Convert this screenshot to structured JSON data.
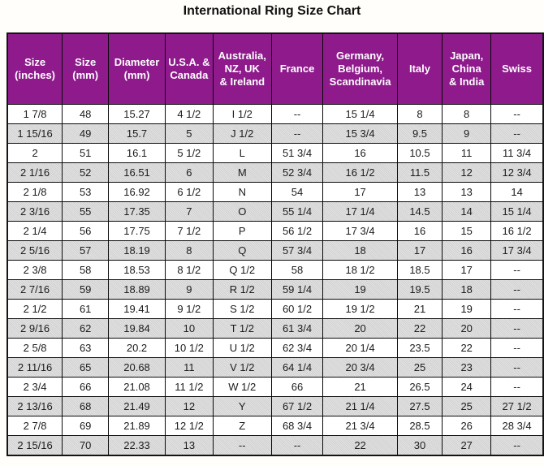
{
  "title": "International Ring Size Chart",
  "colors": {
    "header_bg": "#8E1A8C",
    "header_text": "#FFFFFF",
    "row_alt_bg": "#D8D8D8",
    "border": "#000000"
  },
  "chart_data": {
    "type": "table",
    "title": "International Ring Size Chart",
    "columns": [
      "Size\n(inches)",
      "Size\n(mm)",
      "Diameter\n(mm)",
      "U.S.A. &\nCanada",
      "Australia,\nNZ, UK\n& Ireland",
      "France",
      "Germany,\nBelgium,\nScandinavia",
      "Italy",
      "Japan,\nChina\n& India",
      "Swiss"
    ],
    "rows": [
      [
        "1 7/8",
        "48",
        "15.27",
        "4 1/2",
        "I 1/2",
        "--",
        "15 1/4",
        "8",
        "8",
        "--"
      ],
      [
        "1 15/16",
        "49",
        "15.7",
        "5",
        "J 1/2",
        "--",
        "15 3/4",
        "9.5",
        "9",
        "--"
      ],
      [
        "2",
        "51",
        "16.1",
        "5 1/2",
        "L",
        "51 3/4",
        "16",
        "10.5",
        "11",
        "11 3/4"
      ],
      [
        "2 1/16",
        "52",
        "16.51",
        "6",
        "M",
        "52 3/4",
        "16 1/2",
        "11.5",
        "12",
        "12 3/4"
      ],
      [
        "2 1/8",
        "53",
        "16.92",
        "6 1/2",
        "N",
        "54",
        "17",
        "13",
        "13",
        "14"
      ],
      [
        "2 3/16",
        "55",
        "17.35",
        "7",
        "O",
        "55 1/4",
        "17 1/4",
        "14.5",
        "14",
        "15 1/4"
      ],
      [
        "2 1/4",
        "56",
        "17.75",
        "7 1/2",
        "P",
        "56 1/2",
        "17 3/4",
        "16",
        "15",
        "16 1/2"
      ],
      [
        "2 5/16",
        "57",
        "18.19",
        "8",
        "Q",
        "57 3/4",
        "18",
        "17",
        "16",
        "17 3/4"
      ],
      [
        "2 3/8",
        "58",
        "18.53",
        "8 1/2",
        "Q 1/2",
        "58",
        "18 1/2",
        "18.5",
        "17",
        "--"
      ],
      [
        "2 7/16",
        "59",
        "18.89",
        "9",
        "R 1/2",
        "59 1/4",
        "19",
        "19.5",
        "18",
        "--"
      ],
      [
        "2 1/2",
        "61",
        "19.41",
        "9 1/2",
        "S 1/2",
        "60 1/2",
        "19 1/2",
        "21",
        "19",
        "--"
      ],
      [
        "2 9/16",
        "62",
        "19.84",
        "10",
        "T 1/2",
        "61 3/4",
        "20",
        "22",
        "20",
        "--"
      ],
      [
        "2 5/8",
        "63",
        "20.2",
        "10 1/2",
        "U 1/2",
        "62 3/4",
        "20 1/4",
        "23.5",
        "22",
        "--"
      ],
      [
        "2 11/16",
        "65",
        "20.68",
        "11",
        "V 1/2",
        "64 1/4",
        "20 3/4",
        "25",
        "23",
        "--"
      ],
      [
        "2 3/4",
        "66",
        "21.08",
        "11 1/2",
        "W 1/2",
        "66",
        "21",
        "26.5",
        "24",
        "--"
      ],
      [
        "2 13/16",
        "68",
        "21.49",
        "12",
        "Y",
        "67 1/2",
        "21 1/4",
        "27.5",
        "25",
        "27 1/2"
      ],
      [
        "2 7/8",
        "69",
        "21.89",
        "12 1/2",
        "Z",
        "68 3/4",
        "21 3/4",
        "28.5",
        "26",
        "28 3/4"
      ],
      [
        "2 15/16",
        "70",
        "22.33",
        "13",
        "--",
        "--",
        "22",
        "30",
        "27",
        "--"
      ]
    ]
  }
}
